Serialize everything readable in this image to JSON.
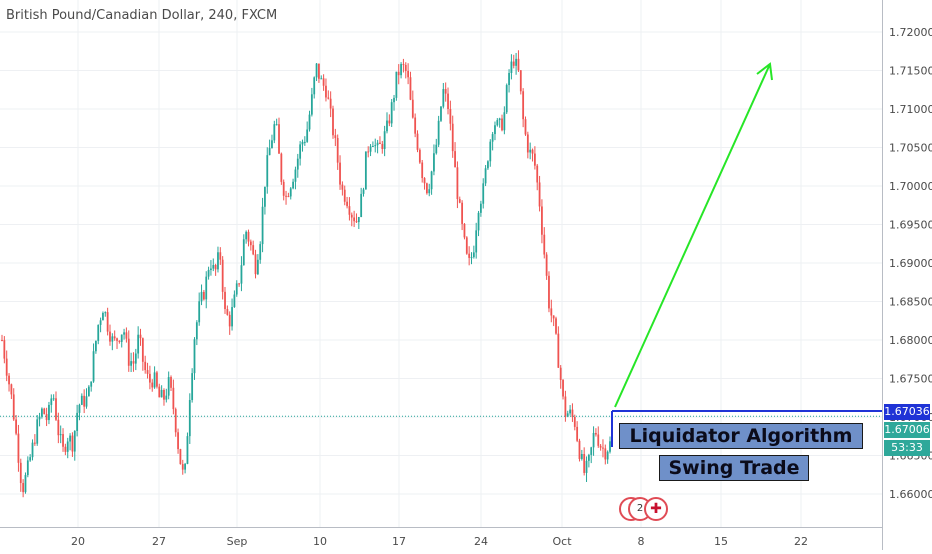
{
  "title": "British Pound/Canadian Dollar, 240, FXCM",
  "chart_data": {
    "type": "candlestick",
    "symbol": "British Pound/Canadian Dollar",
    "interval": "240",
    "source": "FXCM",
    "y_ticks": [
      "1.72000",
      "1.71500",
      "1.71000",
      "1.70500",
      "1.70000",
      "1.69500",
      "1.69000",
      "1.68500",
      "1.68000",
      "1.67500",
      "1.67000",
      "1.66500",
      "1.66000"
    ],
    "y_range": [
      1.6555,
      1.7235
    ],
    "x_ticks": [
      "20",
      "27",
      "Sep",
      "10",
      "17",
      "24",
      "Oct",
      "8",
      "15",
      "22"
    ],
    "close_path": [
      1.68,
      1.676,
      1.672,
      1.6665,
      1.6605,
      1.663,
      1.666,
      1.669,
      1.671,
      1.6695,
      1.6735,
      1.6685,
      1.6655,
      1.6675,
      1.6665,
      1.6715,
      1.672,
      1.6725,
      1.6775,
      1.682,
      1.6845,
      1.6815,
      1.6795,
      1.6805,
      1.6815,
      1.6775,
      1.677,
      1.6805,
      1.6765,
      1.6745,
      1.675,
      1.6725,
      1.6725,
      1.6745,
      1.6705,
      1.665,
      1.6615,
      1.6725,
      1.6805,
      1.6845,
      1.6865,
      1.6905,
      1.6885,
      1.6915,
      1.6835,
      1.6825,
      1.6855,
      1.6885,
      1.6945,
      1.6925,
      1.6895,
      1.6935,
      1.7015,
      1.7055,
      1.7085,
      1.7015,
      1.6985,
      1.7005,
      1.7025,
      1.7055,
      1.7065,
      1.7105,
      1.7155,
      1.7135,
      1.7125,
      1.7085,
      1.7045,
      1.6995,
      1.6985,
      1.6965,
      1.6955,
      1.6985,
      1.7045,
      1.7065,
      1.7045,
      1.7055,
      1.7075,
      1.7105,
      1.7145,
      1.7155,
      1.7145,
      1.7085,
      1.7055,
      1.7015,
      1.6995,
      1.7025,
      1.7065,
      1.7125,
      1.7105,
      1.7045,
      1.6985,
      1.6935,
      1.6895,
      1.6915,
      1.6975,
      1.6995,
      1.7045,
      1.7085,
      1.7075,
      1.7085,
      1.7145,
      1.7165,
      1.7145,
      1.7075,
      1.7045,
      1.7035,
      1.6985,
      1.6915,
      1.6845,
      1.6815,
      1.6765,
      1.6705,
      1.6705,
      1.6695,
      1.6655,
      1.6625,
      1.6645,
      1.6685,
      1.6665,
      1.6655,
      1.6665
    ],
    "last_price": "1.67036",
    "current_price": "1.67006",
    "countdown": "53:33",
    "trend_arrow": {
      "from": {
        "date_index": "after Oct",
        "price": 1.6704
      },
      "to": {
        "date_index": "~Oct 19",
        "price": 1.7155
      }
    },
    "annotations": [
      "Liquidator Algorithm",
      "Swing Trade"
    ],
    "events": [
      {
        "label": "2",
        "flag": "CA"
      },
      {
        "label": "2",
        "flag": "CA"
      },
      {
        "label": "",
        "flag": "GB"
      }
    ],
    "colors": {
      "up": "#26a69a",
      "down": "#ef5350",
      "arrow": "#27e627",
      "level": "#1f33d6",
      "grid": "#eef0f3"
    }
  }
}
